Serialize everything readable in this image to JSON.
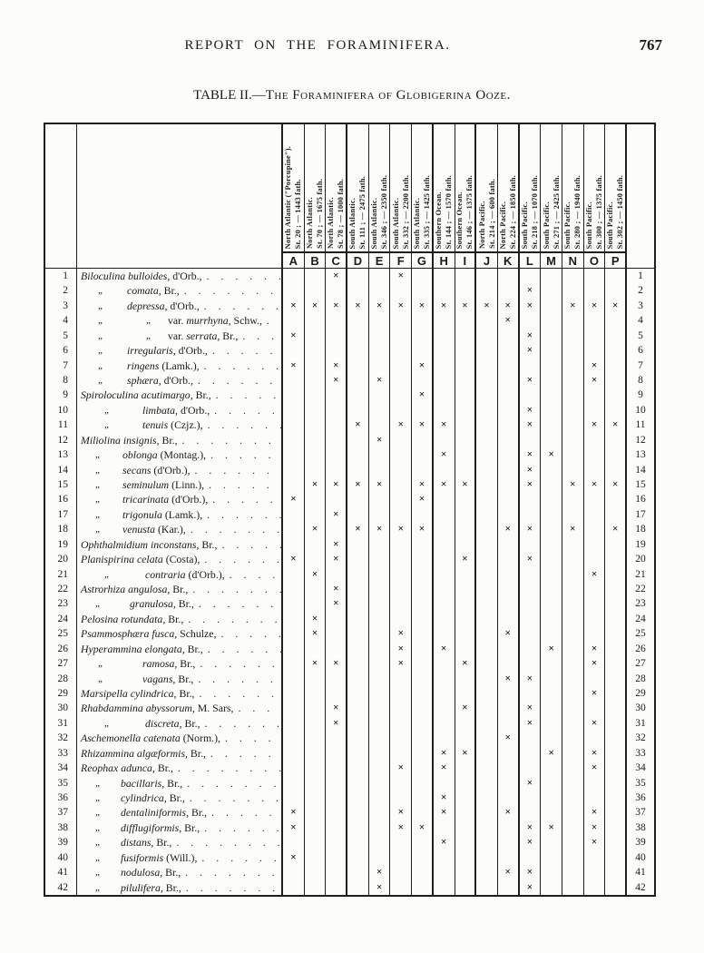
{
  "page": {
    "running_head": "REPORT ON THE FORAMINIFERA.",
    "page_number": "767",
    "title_prefix": "TABLE II.—",
    "title_smallcaps": "The Foraminifera of Globigerina Ooze.",
    "leader_dots": ". . . . . . . . . . . . . . . . . . . . . . . .",
    "mark_glyph": "×",
    "ditto_glyph": "„"
  },
  "table": {
    "column_letters": [
      "A",
      "B",
      "C",
      "D",
      "E",
      "F",
      "G",
      "H",
      "I",
      "J",
      "K",
      "L",
      "M",
      "N",
      "O",
      "P"
    ],
    "stations": [
      {
        "letter": "A",
        "region": "North Atlantic (\"Porcupine\").",
        "station": "St. 20 ; — 1443 fath."
      },
      {
        "letter": "B",
        "region": "North Atlantic.",
        "station": "St. 70 ; — 1675 fath."
      },
      {
        "letter": "C",
        "region": "North Atlantic.",
        "station": "St. 78 ; — 1000 fath."
      },
      {
        "letter": "D",
        "region": "South Atlantic.",
        "station": "St. 111 ; — 2475 fath."
      },
      {
        "letter": "E",
        "region": "South Atlantic.",
        "station": "St. 346 ; — 2350 fath."
      },
      {
        "letter": "F",
        "region": "South Atlantic.",
        "station": "St. 332 ; — 2200 fath."
      },
      {
        "letter": "G",
        "region": "South Atlantic.",
        "station": "St. 335 ; — 1425 fath."
      },
      {
        "letter": "H",
        "region": "Southern Ocean.",
        "station": "St. 144 ; — 1570 fath."
      },
      {
        "letter": "I",
        "region": "Southern Ocean.",
        "station": "St. 146 ; — 1375 fath."
      },
      {
        "letter": "J",
        "region": "North Pacific.",
        "station": "St. 214 ; — 600 fath."
      },
      {
        "letter": "K",
        "region": "North Pacific.",
        "station": "St. 224 ; — 1850 fath."
      },
      {
        "letter": "L",
        "region": "South Pacific.",
        "station": "St. 218 ; — 1070 fath."
      },
      {
        "letter": "M",
        "region": "South Pacific.",
        "station": "St. 271 ; — 2425 fath."
      },
      {
        "letter": "N",
        "region": "South Pacific.",
        "station": "St. 280 ; — 1940 fath."
      },
      {
        "letter": "O",
        "region": "South Pacific.",
        "station": "St. 300 ; — 1375 fath."
      },
      {
        "letter": "P",
        "region": "South Pacific.",
        "station": "St. 302 ; — 1450 fath."
      }
    ],
    "heavy_after_columns": [
      "species",
      "C",
      "G",
      "I",
      "K",
      "P"
    ],
    "rows": [
      {
        "n": 1,
        "lead": [],
        "ind": 4,
        "main": [
          [
            "i",
            "Biloculina bulloides,"
          ],
          [
            "r",
            " d'Orb.,"
          ]
        ],
        "m": [
          "C",
          "F"
        ]
      },
      {
        "n": 2,
        "lead": [
          [
            23
          ]
        ],
        "ind": 55,
        "main": [
          [
            "i",
            "comata,"
          ],
          [
            "r",
            " Br.,"
          ]
        ],
        "m": [
          "L"
        ]
      },
      {
        "n": 3,
        "lead": [
          [
            23
          ]
        ],
        "ind": 55,
        "main": [
          [
            "i",
            "depressa,"
          ],
          [
            "r",
            " d'Orb.,"
          ]
        ],
        "m": [
          "A",
          "B",
          "C",
          "D",
          "E",
          "F",
          "G",
          "H",
          "I",
          "J",
          "K",
          "L",
          "N",
          "O",
          "P"
        ]
      },
      {
        "n": 4,
        "lead": [
          [
            23
          ],
          [
            76
          ]
        ],
        "ind": 100,
        "main": [
          [
            "r",
            "var. "
          ],
          [
            "i",
            "murrhyna,"
          ],
          [
            "r",
            " Schw.,"
          ]
        ],
        "m": [
          "K"
        ]
      },
      {
        "n": 5,
        "lead": [
          [
            23
          ],
          [
            76
          ]
        ],
        "ind": 100,
        "main": [
          [
            "r",
            "var. "
          ],
          [
            "i",
            "serrata,"
          ],
          [
            "r",
            " Br.,"
          ]
        ],
        "m": [
          "A",
          "L"
        ]
      },
      {
        "n": 6,
        "lead": [
          [
            23
          ]
        ],
        "ind": 55,
        "main": [
          [
            "i",
            "irregularis,"
          ],
          [
            "r",
            " d'Orb.,"
          ]
        ],
        "m": [
          "L"
        ]
      },
      {
        "n": 7,
        "lead": [
          [
            23
          ]
        ],
        "ind": 55,
        "main": [
          [
            "i",
            "ringens"
          ],
          [
            "r",
            " (Lamk.),"
          ]
        ],
        "m": [
          "A",
          "C",
          "G",
          "O"
        ]
      },
      {
        "n": 8,
        "lead": [
          [
            23
          ]
        ],
        "ind": 55,
        "main": [
          [
            "i",
            "sphæra,"
          ],
          [
            "r",
            " d'Orb.,"
          ]
        ],
        "m": [
          "C",
          "E",
          "L",
          "O"
        ]
      },
      {
        "n": 9,
        "lead": [],
        "ind": 4,
        "main": [
          [
            "i",
            "Spiroloculina acutimargo,"
          ],
          [
            "r",
            " Br.,"
          ]
        ],
        "m": [
          "G"
        ]
      },
      {
        "n": 10,
        "lead": [
          [
            30
          ]
        ],
        "ind": 72,
        "main": [
          [
            "i",
            "limbata,"
          ],
          [
            "r",
            " d'Orb.,"
          ]
        ],
        "m": [
          "L"
        ]
      },
      {
        "n": 11,
        "lead": [
          [
            30
          ]
        ],
        "ind": 72,
        "main": [
          [
            "i",
            "tenuis"
          ],
          [
            "r",
            " (Czjz.),"
          ]
        ],
        "m": [
          "D",
          "F",
          "G",
          "H",
          "L",
          "O",
          "P"
        ]
      },
      {
        "n": 12,
        "lead": [],
        "ind": 4,
        "main": [
          [
            "i",
            "Miliolina insignis,"
          ],
          [
            "r",
            " Br.,"
          ]
        ],
        "m": [
          "E"
        ]
      },
      {
        "n": 13,
        "lead": [
          [
            20
          ]
        ],
        "ind": 50,
        "main": [
          [
            "i",
            "oblonga"
          ],
          [
            "r",
            " (Montag.),"
          ]
        ],
        "m": [
          "H",
          "L",
          "M"
        ]
      },
      {
        "n": 14,
        "lead": [
          [
            20
          ]
        ],
        "ind": 50,
        "main": [
          [
            "i",
            "secans"
          ],
          [
            "r",
            " (d'Orb.),"
          ]
        ],
        "m": [
          "L"
        ]
      },
      {
        "n": 15,
        "lead": [
          [
            20
          ]
        ],
        "ind": 50,
        "main": [
          [
            "i",
            "seminulum"
          ],
          [
            "r",
            " (Linn.),"
          ]
        ],
        "m": [
          "B",
          "C",
          "D",
          "E",
          "G",
          "H",
          "I",
          "L",
          "N",
          "O",
          "P"
        ]
      },
      {
        "n": 16,
        "lead": [
          [
            20
          ]
        ],
        "ind": 50,
        "main": [
          [
            "i",
            "tricarinata"
          ],
          [
            "r",
            " (d'Orb.),"
          ]
        ],
        "m": [
          "A",
          "G"
        ]
      },
      {
        "n": 17,
        "lead": [
          [
            20
          ]
        ],
        "ind": 50,
        "main": [
          [
            "i",
            "trigonula"
          ],
          [
            "r",
            " (Lamk.),"
          ]
        ],
        "m": [
          "C"
        ]
      },
      {
        "n": 18,
        "lead": [
          [
            20
          ]
        ],
        "ind": 50,
        "main": [
          [
            "i",
            "venusta"
          ],
          [
            "r",
            " (Kar.),"
          ]
        ],
        "m": [
          "B",
          "D",
          "E",
          "F",
          "G",
          "K",
          "L",
          "N",
          "P"
        ]
      },
      {
        "n": 19,
        "lead": [],
        "ind": 4,
        "main": [
          [
            "i",
            "Ophthalmidium inconstans,"
          ],
          [
            "r",
            " Br.,"
          ]
        ],
        "m": [
          "C"
        ]
      },
      {
        "n": 20,
        "lead": [],
        "ind": 4,
        "main": [
          [
            "i",
            "Planispirina celata"
          ],
          [
            "r",
            " (Costa),"
          ]
        ],
        "m": [
          "A",
          "C",
          "I",
          "L"
        ]
      },
      {
        "n": 21,
        "lead": [
          [
            30
          ]
        ],
        "ind": 75,
        "main": [
          [
            "i",
            "contraria"
          ],
          [
            "r",
            " (d'Orb.),"
          ]
        ],
        "m": [
          "B",
          "O"
        ]
      },
      {
        "n": 22,
        "lead": [],
        "ind": 4,
        "main": [
          [
            "i",
            "Astrorhiza angulosa,"
          ],
          [
            "r",
            " Br.,"
          ]
        ],
        "m": [
          "C"
        ]
      },
      {
        "n": 23,
        "lead": [
          [
            20
          ]
        ],
        "ind": 58,
        "main": [
          [
            "i",
            "granulosa,"
          ],
          [
            "r",
            " Br.,"
          ]
        ],
        "m": [
          "C"
        ]
      },
      {
        "n": 24,
        "lead": [],
        "ind": 4,
        "main": [
          [
            "i",
            "Pelosina rotundata,"
          ],
          [
            "r",
            " Br.,"
          ]
        ],
        "m": [
          "B"
        ]
      },
      {
        "n": 25,
        "lead": [],
        "ind": 4,
        "main": [
          [
            "i",
            "Psammosphæra fusca,"
          ],
          [
            "r",
            " Schulze,"
          ]
        ],
        "m": [
          "B",
          "F",
          "K"
        ]
      },
      {
        "n": 26,
        "lead": [],
        "ind": 4,
        "main": [
          [
            "i",
            "Hyperammina elongata,"
          ],
          [
            "r",
            " Br.,"
          ]
        ],
        "m": [
          "F",
          "H",
          "M",
          "O"
        ]
      },
      {
        "n": 27,
        "lead": [
          [
            23
          ]
        ],
        "ind": 72,
        "main": [
          [
            "i",
            "ramosa,"
          ],
          [
            "r",
            " Br.,"
          ]
        ],
        "m": [
          "B",
          "C",
          "F",
          "I",
          "O"
        ]
      },
      {
        "n": 28,
        "lead": [
          [
            23
          ]
        ],
        "ind": 72,
        "main": [
          [
            "i",
            "vagans,"
          ],
          [
            "r",
            " Br.,"
          ]
        ],
        "m": [
          "K",
          "L"
        ]
      },
      {
        "n": 29,
        "lead": [],
        "ind": 4,
        "main": [
          [
            "i",
            "Marsipella cylindrica,"
          ],
          [
            "r",
            " Br.,"
          ]
        ],
        "m": [
          "O"
        ]
      },
      {
        "n": 30,
        "lead": [],
        "ind": 4,
        "main": [
          [
            "i",
            "Rhabdammina abyssorum,"
          ],
          [
            "r",
            " M. Sars,"
          ]
        ],
        "m": [
          "C",
          "I",
          "L"
        ]
      },
      {
        "n": 31,
        "lead": [
          [
            30
          ]
        ],
        "ind": 75,
        "main": [
          [
            "i",
            "discreta,"
          ],
          [
            "r",
            " Br.,"
          ]
        ],
        "m": [
          "C",
          "L",
          "O"
        ]
      },
      {
        "n": 32,
        "lead": [],
        "ind": 4,
        "main": [
          [
            "i",
            "Aschemonella catenata"
          ],
          [
            "r",
            " (Norm.),"
          ]
        ],
        "m": [
          "K"
        ]
      },
      {
        "n": 33,
        "lead": [],
        "ind": 4,
        "main": [
          [
            "i",
            "Rhizammina algæformis,"
          ],
          [
            "r",
            " Br.,"
          ]
        ],
        "m": [
          "H",
          "I",
          "M",
          "O"
        ]
      },
      {
        "n": 34,
        "lead": [],
        "ind": 4,
        "main": [
          [
            "i",
            "Reophax adunca,"
          ],
          [
            "r",
            " Br.,"
          ]
        ],
        "m": [
          "F",
          "H",
          "O"
        ]
      },
      {
        "n": 35,
        "lead": [
          [
            20
          ]
        ],
        "ind": 48,
        "main": [
          [
            "i",
            "bacillaris,"
          ],
          [
            "r",
            " Br.,"
          ]
        ],
        "m": [
          "L"
        ]
      },
      {
        "n": 36,
        "lead": [
          [
            20
          ]
        ],
        "ind": 48,
        "main": [
          [
            "i",
            "cylindrica,"
          ],
          [
            "r",
            " Br.,"
          ]
        ],
        "m": [
          "H"
        ]
      },
      {
        "n": 37,
        "lead": [
          [
            20
          ]
        ],
        "ind": 48,
        "main": [
          [
            "i",
            "dentaliniformis,"
          ],
          [
            "r",
            " Br.,"
          ]
        ],
        "m": [
          "A",
          "F",
          "H",
          "K",
          "O"
        ]
      },
      {
        "n": 38,
        "lead": [
          [
            20
          ]
        ],
        "ind": 48,
        "main": [
          [
            "i",
            "difflugiformis,"
          ],
          [
            "r",
            " Br.,"
          ]
        ],
        "m": [
          "A",
          "F",
          "G",
          "L",
          "M",
          "O"
        ]
      },
      {
        "n": 39,
        "lead": [
          [
            20
          ]
        ],
        "ind": 48,
        "main": [
          [
            "i",
            "distans,"
          ],
          [
            "r",
            " Br.,"
          ]
        ],
        "m": [
          "H",
          "L",
          "O"
        ]
      },
      {
        "n": 40,
        "lead": [
          [
            20
          ]
        ],
        "ind": 48,
        "main": [
          [
            "i",
            "fusiformis"
          ],
          [
            "r",
            " (Will.),"
          ]
        ],
        "m": [
          "A"
        ]
      },
      {
        "n": 41,
        "lead": [
          [
            20
          ]
        ],
        "ind": 48,
        "main": [
          [
            "i",
            "nodulosa,"
          ],
          [
            "r",
            " Br.,"
          ]
        ],
        "m": [
          "E",
          "K",
          "L"
        ]
      },
      {
        "n": 42,
        "lead": [
          [
            20
          ]
        ],
        "ind": 48,
        "main": [
          [
            "i",
            "pilulifera,"
          ],
          [
            "r",
            " Br.,"
          ]
        ],
        "m": [
          "E",
          "L"
        ]
      }
    ]
  }
}
